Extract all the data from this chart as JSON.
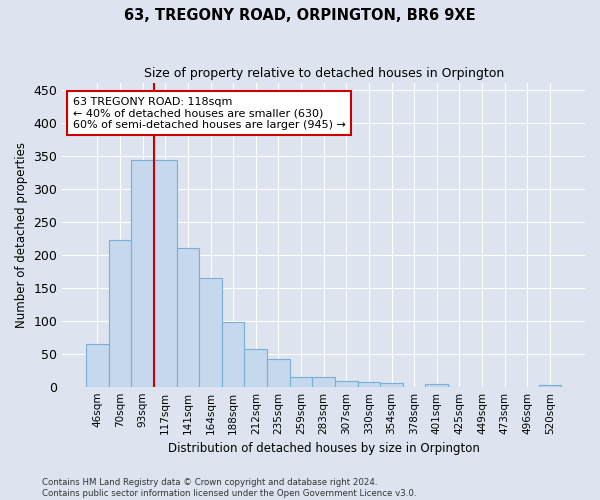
{
  "title": "63, TREGONY ROAD, ORPINGTON, BR6 9XE",
  "subtitle": "Size of property relative to detached houses in Orpington",
  "xlabel": "Distribution of detached houses by size in Orpington",
  "ylabel": "Number of detached properties",
  "bar_color": "#c5d8ee",
  "bar_edge_color": "#7aafd4",
  "background_color": "#dde4f0",
  "grid_color": "#ffffff",
  "categories": [
    "46sqm",
    "70sqm",
    "93sqm",
    "117sqm",
    "141sqm",
    "164sqm",
    "188sqm",
    "212sqm",
    "235sqm",
    "259sqm",
    "283sqm",
    "307sqm",
    "330sqm",
    "354sqm",
    "378sqm",
    "401sqm",
    "425sqm",
    "449sqm",
    "473sqm",
    "496sqm",
    "520sqm"
  ],
  "values": [
    65,
    222,
    344,
    344,
    210,
    165,
    98,
    57,
    42,
    15,
    15,
    8,
    7,
    5,
    0,
    4,
    0,
    0,
    0,
    0,
    3
  ],
  "annotation_line1": "63 TREGONY ROAD: 118sqm",
  "annotation_line2": "← 40% of detached houses are smaller (630)",
  "annotation_line3": "60% of semi-detached houses are larger (945) →",
  "vline_index": 3,
  "ylim": [
    0,
    460
  ],
  "yticks": [
    0,
    50,
    100,
    150,
    200,
    250,
    300,
    350,
    400,
    450
  ],
  "footnote_line1": "Contains HM Land Registry data © Crown copyright and database right 2024.",
  "footnote_line2": "Contains public sector information licensed under the Open Government Licence v3.0.",
  "vline_color": "#cc0000",
  "annotation_box_color": "#ffffff",
  "annotation_box_edge": "#cc0000"
}
